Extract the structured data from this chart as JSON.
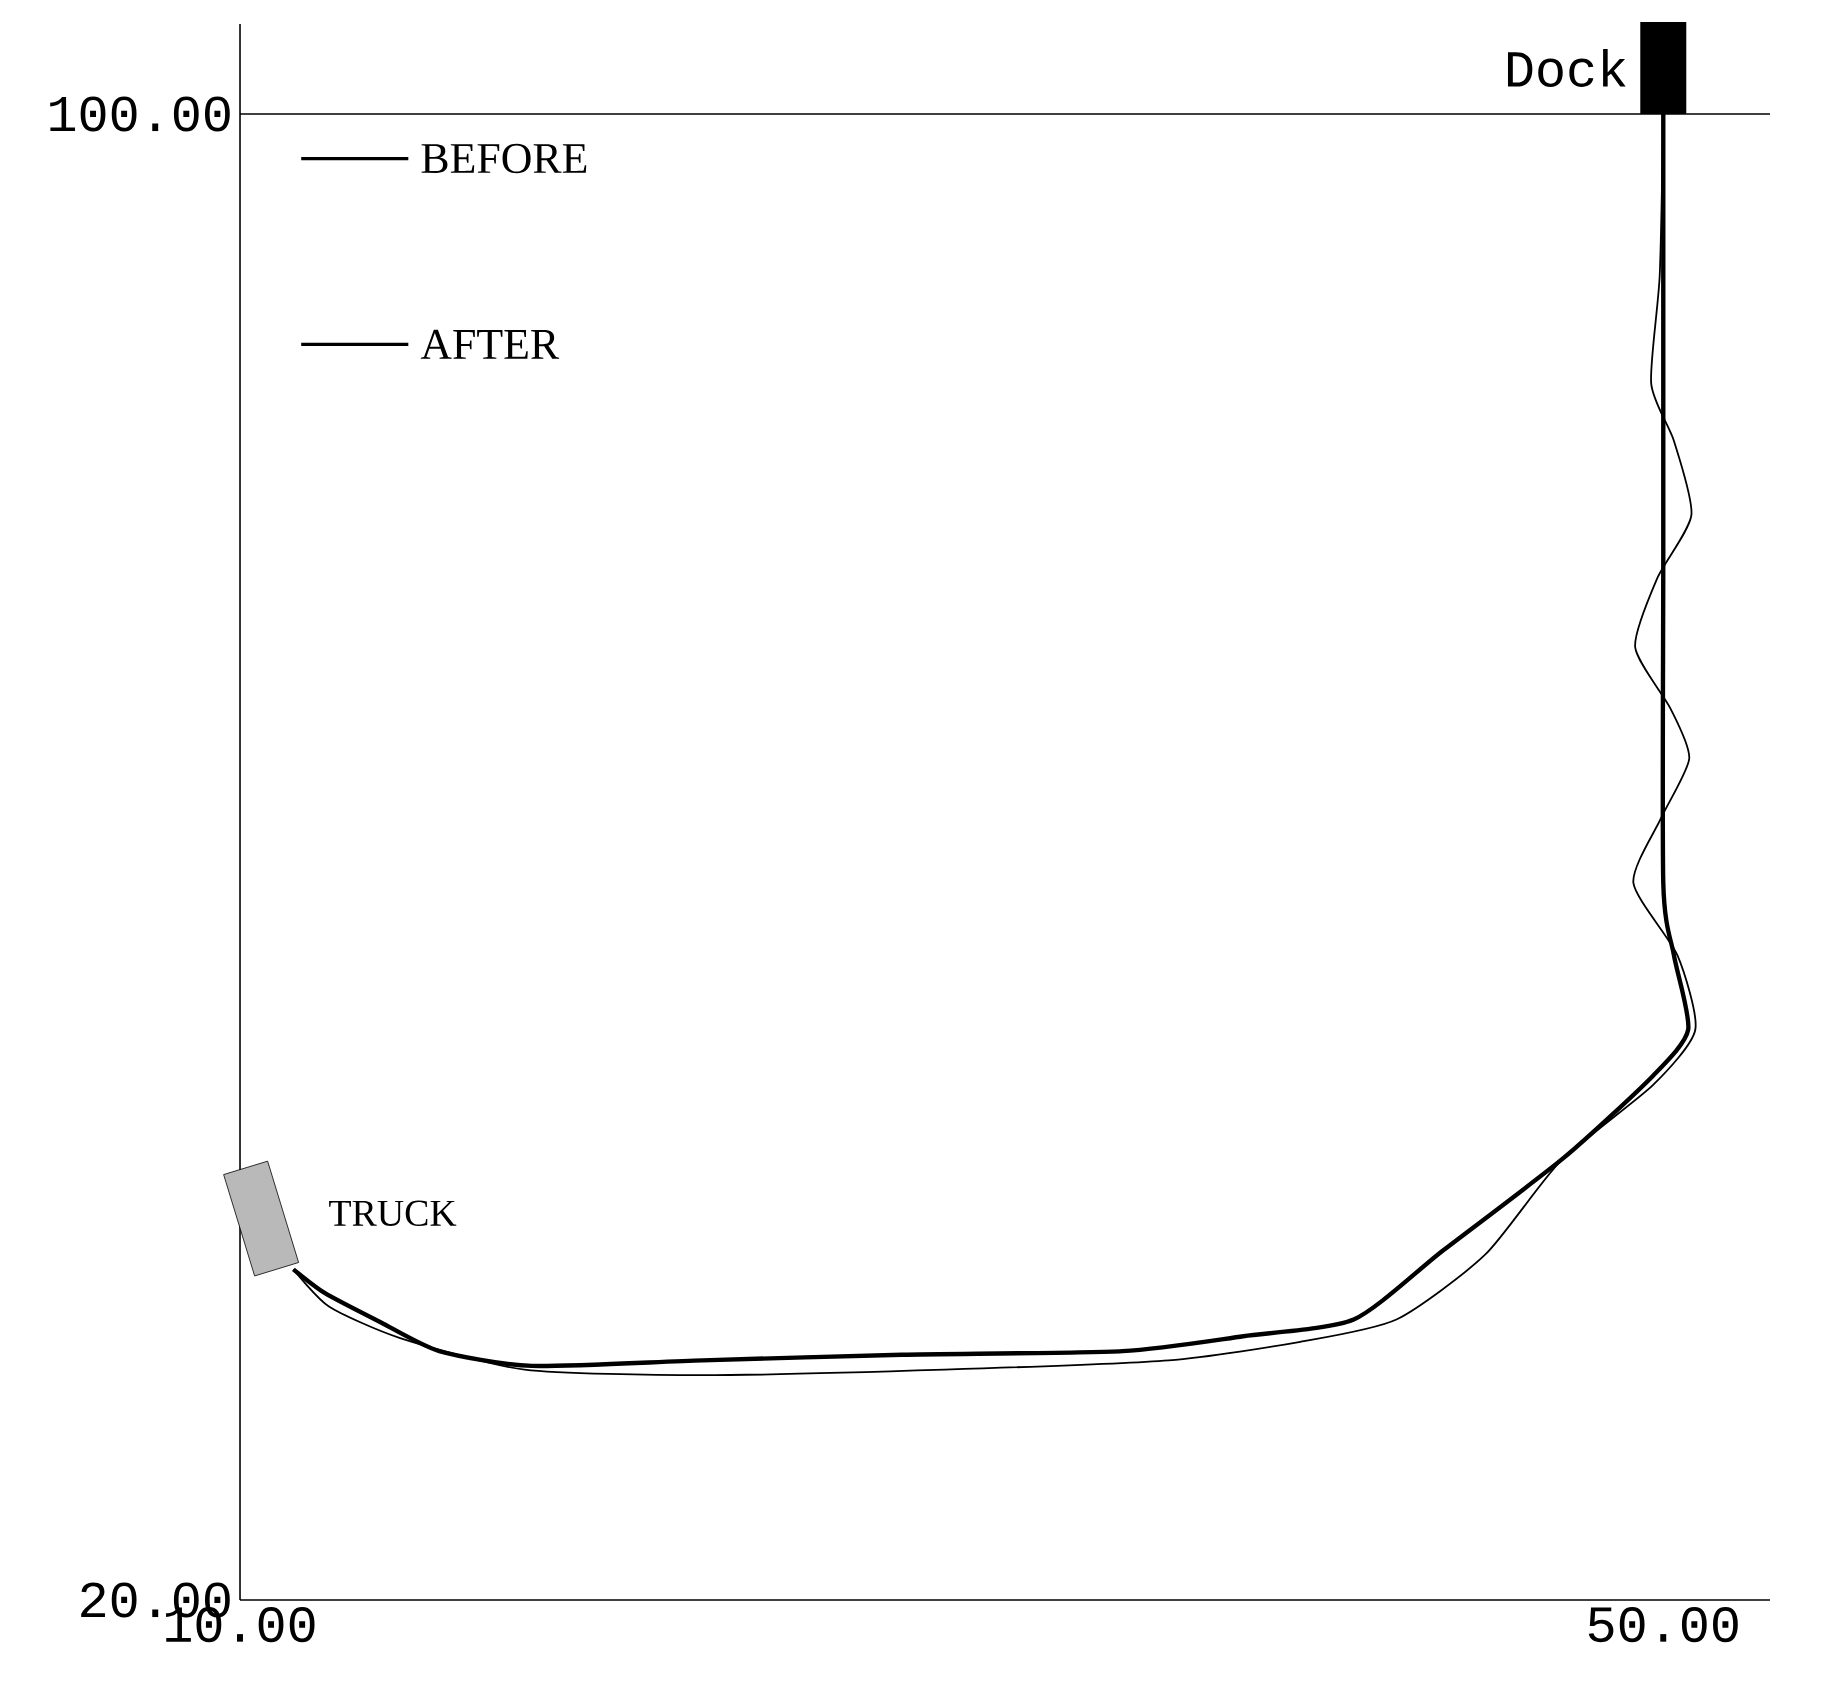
{
  "chart_data": {
    "type": "line",
    "xlim": [
      10,
      53
    ],
    "ylim": [
      20,
      100
    ],
    "xticks": [
      {
        "value": 10,
        "label": "10.00"
      },
      {
        "value": 50,
        "label": "50.00"
      }
    ],
    "yticks": [
      {
        "value": 20,
        "label": "20.00"
      },
      {
        "value": 100,
        "label": "100.00"
      }
    ],
    "legend": "top left",
    "grid": false,
    "marker": "none",
    "line_style": "solid",
    "series": [
      {
        "name": "BEFORE",
        "color": "#000000",
        "x": [
          11.5,
          12.5,
          14.5,
          18,
          23,
          29.8,
          36.1,
          39.8,
          42.5,
          45,
          47.1,
          49.7,
          50.9,
          50.4,
          49.16,
          49.94,
          50.73,
          50.2,
          49.21,
          49.83,
          50.79,
          50.3,
          49.66,
          49.9,
          50
        ],
        "values": [
          37.8,
          35.8,
          34.1,
          32.4,
          32.1,
          32.4,
          32.9,
          33.9,
          35.1,
          38.6,
          43.6,
          47.7,
          50.7,
          54.7,
          58.6,
          62.1,
          65.3,
          68,
          71.3,
          75,
          78.4,
          82.4,
          85.5,
          91.3,
          100
        ]
      },
      {
        "name": "AFTER",
        "color": "#000000",
        "x": [
          11.5,
          12.4,
          14,
          15.6,
          18.2,
          23,
          28.6,
          34.8,
          38.2,
          41.3,
          43.8,
          47.2,
          49.7,
          50.7,
          50.3,
          50,
          50,
          50
        ],
        "values": [
          37.8,
          36.5,
          34.9,
          33.4,
          32.6,
          32.9,
          33.2,
          33.4,
          34.2,
          35.1,
          38.8,
          43.8,
          48.2,
          50.7,
          54.7,
          58.6,
          76.4,
          100
        ]
      }
    ],
    "annotations": [
      {
        "text": "Dock",
        "x": 50,
        "y": 100
      },
      "TRUCK"
    ]
  }
}
